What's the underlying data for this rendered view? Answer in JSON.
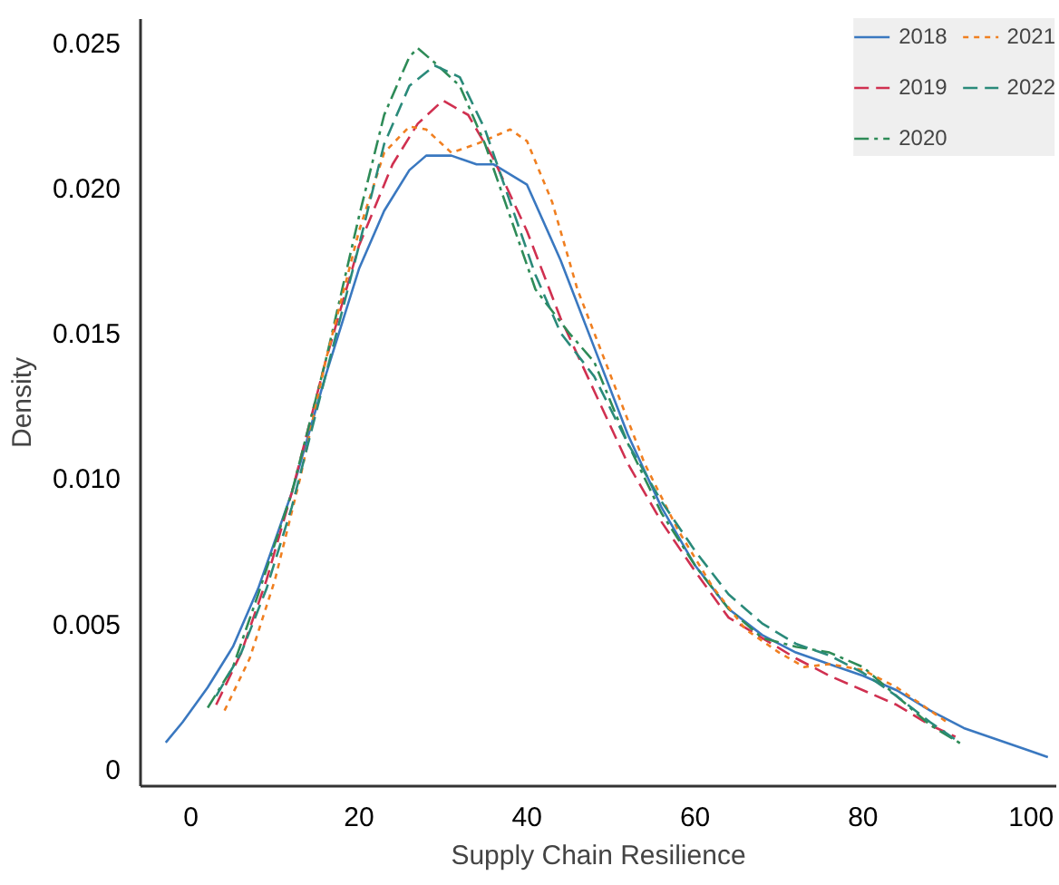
{
  "chart_data": {
    "type": "line",
    "xlabel": "Supply Chain Resilience",
    "ylabel": "Density",
    "xlim": [
      -6,
      103
    ],
    "ylim": [
      -0.0006,
      0.0258
    ],
    "xticks": [
      0,
      20,
      40,
      60,
      80,
      100
    ],
    "yticks": [
      {
        "value": 0,
        "label": "0"
      },
      {
        "value": 0.005,
        "label": "0.005"
      },
      {
        "value": 0.01,
        "label": "0.010"
      },
      {
        "value": 0.015,
        "label": "0.015"
      },
      {
        "value": 0.02,
        "label": "0.020"
      },
      {
        "value": 0.025,
        "label": "0.025"
      }
    ],
    "grid": false,
    "legend": "top right",
    "series": [
      {
        "name": "2018",
        "color": "#3a78c0",
        "line_style": "solid",
        "x": [
          -3,
          -1,
          2,
          5,
          8,
          12,
          16,
          20,
          23,
          26,
          28,
          31,
          34,
          36,
          40,
          44,
          48,
          52,
          56,
          60,
          64,
          68,
          72,
          76,
          80,
          84,
          88,
          92,
          96,
          100,
          102
        ],
        "values": [
          0.0009,
          0.0016,
          0.0028,
          0.0042,
          0.0062,
          0.0095,
          0.0135,
          0.0172,
          0.0192,
          0.0206,
          0.0211,
          0.0211,
          0.0208,
          0.0208,
          0.0201,
          0.0175,
          0.0145,
          0.0115,
          0.009,
          0.007,
          0.0055,
          0.0046,
          0.004,
          0.0036,
          0.0032,
          0.0027,
          0.002,
          0.0014,
          0.001,
          0.0006,
          0.0004
        ]
      },
      {
        "name": "2019",
        "color": "#d03050",
        "line_style": "dashed",
        "x": [
          3,
          6,
          9,
          12,
          16,
          20,
          24,
          27,
          30,
          33,
          36,
          40,
          44,
          48,
          52,
          56,
          60,
          64,
          68,
          72,
          76,
          80,
          84,
          88,
          91
        ],
        "values": [
          0.0022,
          0.004,
          0.0065,
          0.0095,
          0.014,
          0.018,
          0.0208,
          0.0222,
          0.023,
          0.0225,
          0.021,
          0.0185,
          0.0155,
          0.013,
          0.0105,
          0.0085,
          0.0068,
          0.0052,
          0.0045,
          0.0038,
          0.0032,
          0.0027,
          0.0022,
          0.0015,
          0.0011
        ]
      },
      {
        "name": "2020",
        "color": "#2e8b57",
        "line_style": "dashdot",
        "x": [
          2,
          5,
          8,
          12,
          16,
          20,
          23,
          26,
          27,
          29,
          32,
          35,
          38,
          41,
          45,
          48,
          52,
          56,
          60,
          64,
          68,
          72,
          76,
          80,
          84,
          88,
          92
        ],
        "values": [
          0.0021,
          0.0035,
          0.006,
          0.0095,
          0.014,
          0.019,
          0.0225,
          0.0245,
          0.0248,
          0.0243,
          0.0235,
          0.0215,
          0.019,
          0.0165,
          0.015,
          0.014,
          0.0112,
          0.0088,
          0.007,
          0.0055,
          0.0045,
          0.0042,
          0.004,
          0.0035,
          0.0025,
          0.0015,
          0.0008
        ]
      },
      {
        "name": "2021",
        "color": "#f07f20",
        "line_style": "dotted",
        "x": [
          4,
          7,
          10,
          13,
          16,
          20,
          23,
          26,
          28,
          31,
          34,
          38,
          40,
          43,
          46,
          50,
          54,
          58,
          62,
          66,
          70,
          73,
          76,
          80,
          84,
          88,
          90
        ],
        "values": [
          0.002,
          0.0038,
          0.0065,
          0.01,
          0.014,
          0.0185,
          0.0212,
          0.0221,
          0.022,
          0.0212,
          0.0215,
          0.022,
          0.0216,
          0.0195,
          0.0165,
          0.0135,
          0.0105,
          0.0082,
          0.0063,
          0.0048,
          0.004,
          0.0035,
          0.0036,
          0.0034,
          0.0028,
          0.002,
          0.0016
        ]
      },
      {
        "name": "2022",
        "color": "#2a8a7a",
        "line_style": "dashed",
        "x": [
          3,
          6,
          9,
          12,
          16,
          20,
          23,
          26,
          29,
          32,
          35,
          38,
          41,
          44,
          48,
          52,
          56,
          60,
          64,
          68,
          72,
          76,
          80,
          84,
          88,
          91
        ],
        "values": [
          0.0025,
          0.004,
          0.0062,
          0.009,
          0.0135,
          0.018,
          0.0215,
          0.0235,
          0.0242,
          0.0238,
          0.022,
          0.0195,
          0.017,
          0.015,
          0.0135,
          0.0112,
          0.0092,
          0.0075,
          0.006,
          0.005,
          0.0043,
          0.0039,
          0.0033,
          0.0025,
          0.0016,
          0.001
        ]
      }
    ]
  }
}
